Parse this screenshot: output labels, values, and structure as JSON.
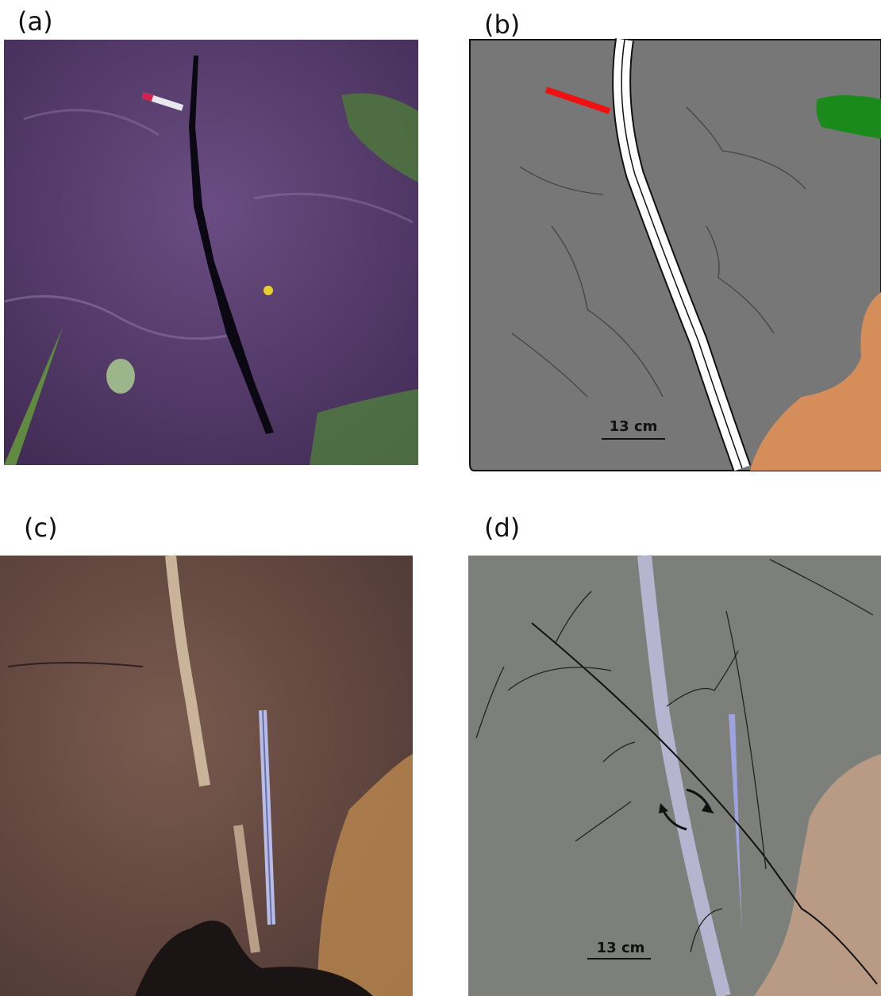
{
  "panels": [
    {
      "label": "(a)"
    },
    {
      "label": "(b)",
      "scale_label": "13 cm"
    },
    {
      "label": "(c)"
    },
    {
      "label": "(d)",
      "scale_label": "13 cm"
    }
  ]
}
